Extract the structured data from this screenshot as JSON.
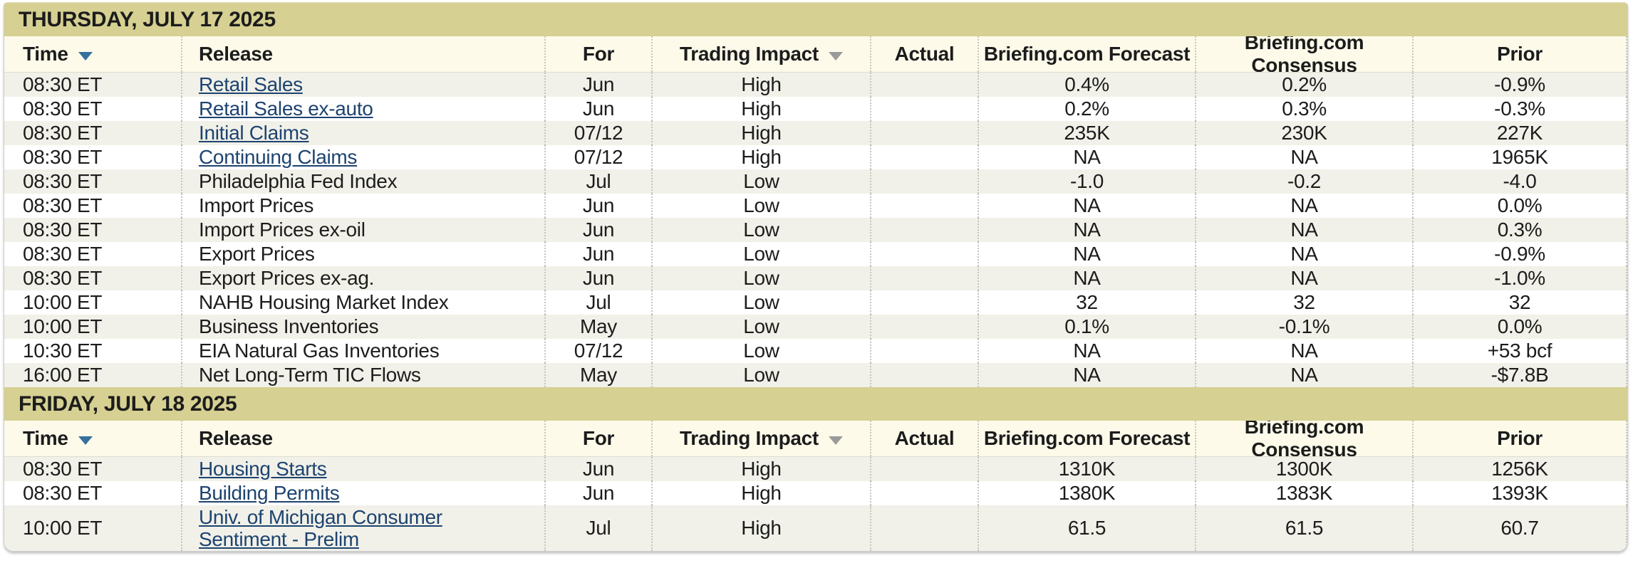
{
  "colors": {
    "band": "#d6d092",
    "header-bg": "#fdfaea",
    "row-alt": "#f1f1e9",
    "row-white": "#ffffff",
    "text": "#1c1c1c",
    "link": "#1d4370",
    "tri-blue": "#35719f",
    "tri-gray": "#9a9a9a",
    "dotted": "#c6c6bd"
  },
  "columns": [
    {
      "key": "time",
      "label": "Time",
      "sort": "tri-blue"
    },
    {
      "key": "release",
      "label": "Release",
      "sort": null
    },
    {
      "key": "for",
      "label": "For",
      "sort": null
    },
    {
      "key": "impact",
      "label": "Trading Impact",
      "sort": "tri-gray"
    },
    {
      "key": "actual",
      "label": "Actual",
      "sort": null
    },
    {
      "key": "forecast",
      "label": "Briefing.com Forecast",
      "sort": null
    },
    {
      "key": "consensus",
      "label": "Briefing.com Consensus",
      "sort": null
    },
    {
      "key": "prior",
      "label": "Prior",
      "sort": null
    }
  ],
  "sections": [
    {
      "date_header": "THURSDAY, JULY 17 2025",
      "rows": [
        {
          "time": "08:30 ET",
          "release": "Retail Sales",
          "link": true,
          "for": "Jun",
          "impact": "High",
          "actual": "",
          "forecast": "0.4%",
          "consensus": "0.2%",
          "prior": "-0.9%"
        },
        {
          "time": "08:30 ET",
          "release": "Retail Sales ex-auto",
          "link": true,
          "for": "Jun",
          "impact": "High",
          "actual": "",
          "forecast": "0.2%",
          "consensus": "0.3%",
          "prior": "-0.3%"
        },
        {
          "time": "08:30 ET",
          "release": "Initial Claims",
          "link": true,
          "for": "07/12",
          "impact": "High",
          "actual": "",
          "forecast": "235K",
          "consensus": "230K",
          "prior": "227K"
        },
        {
          "time": "08:30 ET",
          "release": "Continuing Claims",
          "link": true,
          "for": "07/12",
          "impact": "High",
          "actual": "",
          "forecast": "NA",
          "consensus": "NA",
          "prior": "1965K"
        },
        {
          "time": "08:30 ET",
          "release": "Philadelphia Fed Index",
          "link": false,
          "for": "Jul",
          "impact": "Low",
          "actual": "",
          "forecast": "-1.0",
          "consensus": "-0.2",
          "prior": "-4.0"
        },
        {
          "time": "08:30 ET",
          "release": "Import Prices",
          "link": false,
          "for": "Jun",
          "impact": "Low",
          "actual": "",
          "forecast": "NA",
          "consensus": "NA",
          "prior": "0.0%"
        },
        {
          "time": "08:30 ET",
          "release": "Import Prices ex-oil",
          "link": false,
          "for": "Jun",
          "impact": "Low",
          "actual": "",
          "forecast": "NA",
          "consensus": "NA",
          "prior": "0.3%"
        },
        {
          "time": "08:30 ET",
          "release": "Export Prices",
          "link": false,
          "for": "Jun",
          "impact": "Low",
          "actual": "",
          "forecast": "NA",
          "consensus": "NA",
          "prior": "-0.9%"
        },
        {
          "time": "08:30 ET",
          "release": "Export Prices ex-ag.",
          "link": false,
          "for": "Jun",
          "impact": "Low",
          "actual": "",
          "forecast": "NA",
          "consensus": "NA",
          "prior": "-1.0%"
        },
        {
          "time": "10:00 ET",
          "release": "NAHB Housing Market Index",
          "link": false,
          "for": "Jul",
          "impact": "Low",
          "actual": "",
          "forecast": "32",
          "consensus": "32",
          "prior": "32"
        },
        {
          "time": "10:00 ET",
          "release": "Business Inventories",
          "link": false,
          "for": "May",
          "impact": "Low",
          "actual": "",
          "forecast": "0.1%",
          "consensus": "-0.1%",
          "prior": "0.0%"
        },
        {
          "time": "10:30 ET",
          "release": "EIA Natural Gas Inventories",
          "link": false,
          "for": "07/12",
          "impact": "Low",
          "actual": "",
          "forecast": "NA",
          "consensus": "NA",
          "prior": "+53 bcf"
        },
        {
          "time": "16:00 ET",
          "release": "Net Long-Term TIC Flows",
          "link": false,
          "for": "May",
          "impact": "Low",
          "actual": "",
          "forecast": "NA",
          "consensus": "NA",
          "prior": "-$7.8B"
        }
      ]
    },
    {
      "date_header": "FRIDAY, JULY 18 2025",
      "rows": [
        {
          "time": "08:30 ET",
          "release": "Housing Starts",
          "link": true,
          "for": "Jun",
          "impact": "High",
          "actual": "",
          "forecast": "1310K",
          "consensus": "1300K",
          "prior": "1256K"
        },
        {
          "time": "08:30 ET",
          "release": "Building Permits",
          "link": true,
          "for": "Jun",
          "impact": "High",
          "actual": "",
          "forecast": "1380K",
          "consensus": "1383K",
          "prior": "1393K"
        },
        {
          "time": "10:00 ET",
          "release": "Univ. of Michigan Consumer Sentiment - Prelim",
          "link": true,
          "tall": true,
          "for": "Jul",
          "impact": "High",
          "actual": "",
          "forecast": "61.5",
          "consensus": "61.5",
          "prior": "60.7"
        }
      ]
    }
  ]
}
